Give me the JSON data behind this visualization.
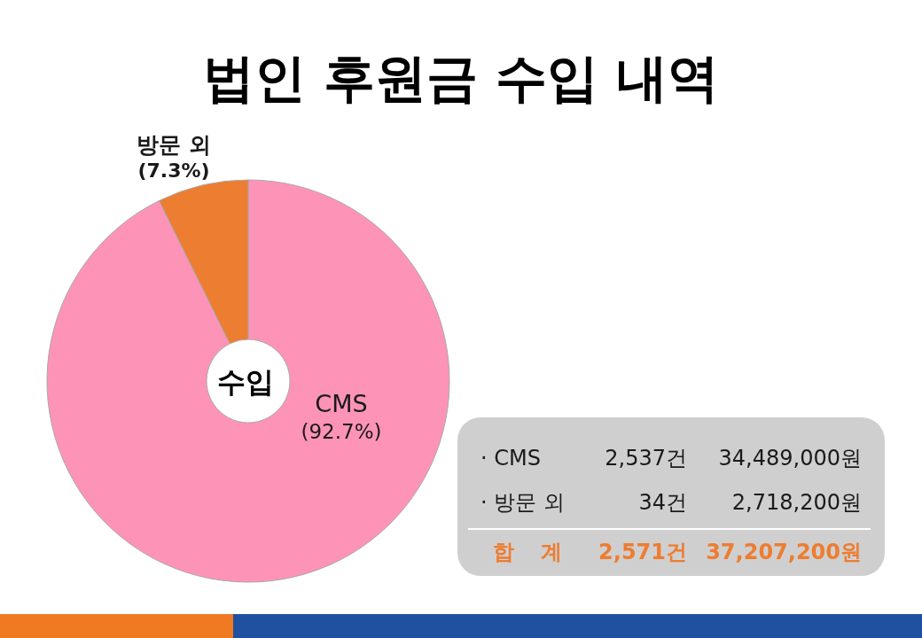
{
  "chart_data": [
    {
      "type": "donut",
      "title": "법인 후원금 수입 내역",
      "categories": [
        "CMS",
        "방문 외"
      ],
      "values": [
        92.7,
        7.3
      ],
      "colors": [
        "#fe93b8",
        "#ed7d31"
      ],
      "value_labels": [
        "(92.7%)",
        "(7.3%)"
      ],
      "annotations": [
        "수입"
      ]
    },
    {
      "type": "other",
      "annotations": [
        "· CMS",
        "2,537건",
        "34,489,000원",
        "· 방문 외",
        "34건",
        "2,718,200원",
        "합 계",
        "2,571건",
        "37,207,200원"
      ]
    }
  ]
}
